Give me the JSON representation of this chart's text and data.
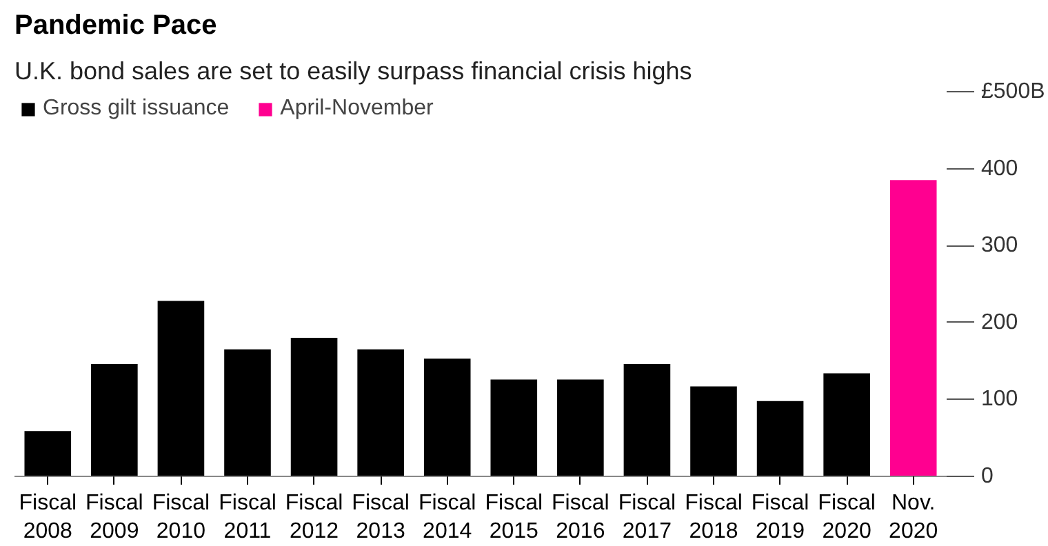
{
  "chart_data": {
    "type": "bar",
    "title": "Pandemic Pace",
    "subtitle": "U.K. bond sales are set to easily surpass financial crisis highs",
    "categories": [
      "Fiscal\n2008",
      "Fiscal\n2009",
      "Fiscal\n2010",
      "Fiscal\n2011",
      "Fiscal\n2012",
      "Fiscal\n2013",
      "Fiscal\n2014",
      "Fiscal\n2015",
      "Fiscal\n2016",
      "Fiscal\n2017",
      "Fiscal\n2018",
      "Fiscal\n2019",
      "Fiscal\n2020",
      "Nov.\n2020"
    ],
    "series": [
      {
        "name": "Gross gilt issuance",
        "color": "#000000",
        "values": [
          59,
          146,
          228,
          165,
          180,
          165,
          153,
          126,
          126,
          146,
          117,
          98,
          134,
          null
        ]
      },
      {
        "name": "April-November",
        "color": "#ff0090",
        "values": [
          null,
          null,
          null,
          null,
          null,
          null,
          null,
          null,
          null,
          null,
          null,
          null,
          null,
          385
        ]
      }
    ],
    "ylim": [
      0,
      500
    ],
    "yticks": [
      0,
      100,
      200,
      300,
      400,
      {
        "value": 500,
        "label": "£500B"
      }
    ],
    "grid": false,
    "legend": "top left"
  }
}
